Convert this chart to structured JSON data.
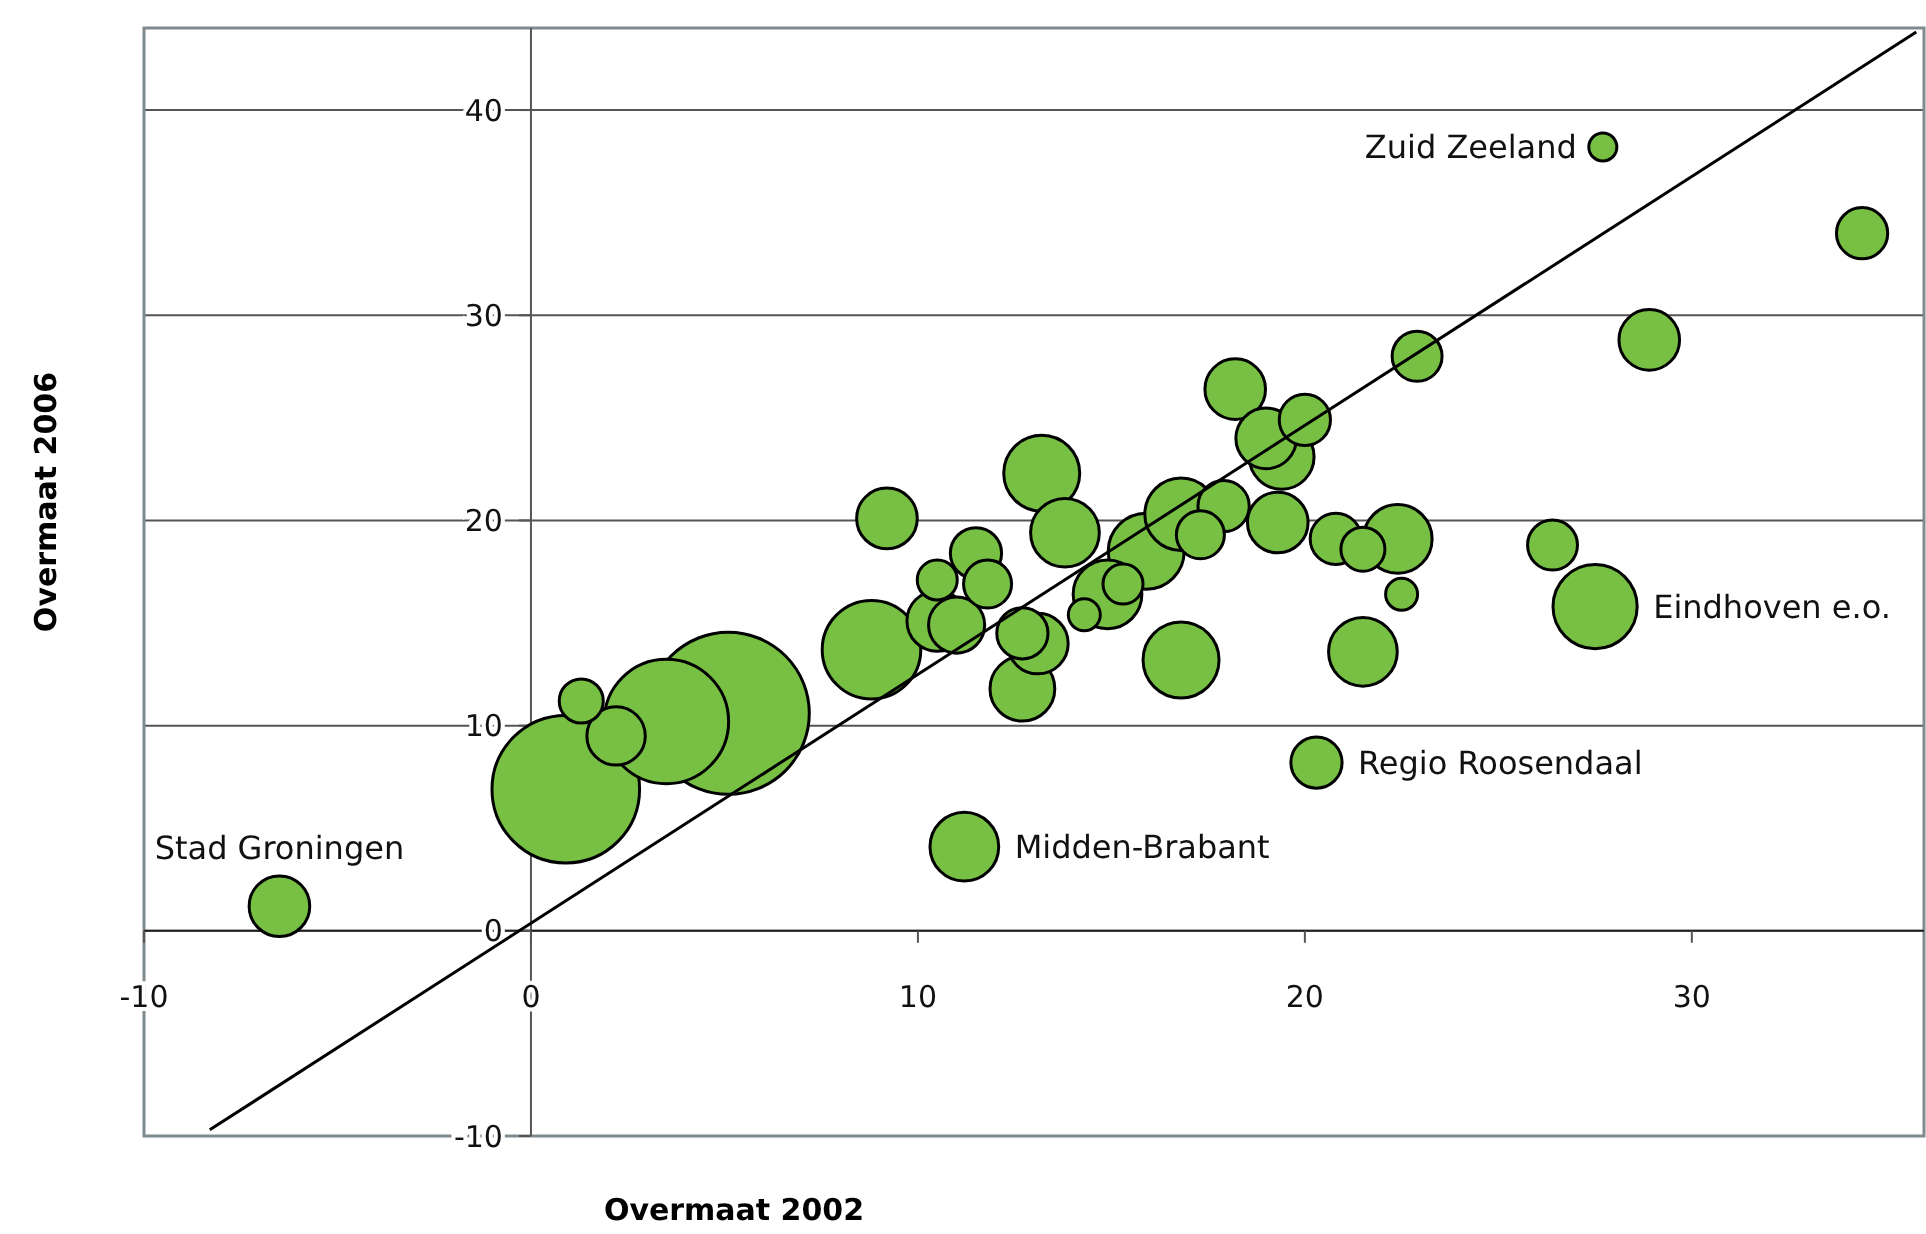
{
  "chart_data": {
    "type": "bubble",
    "xlabel": "Overmaat 2002",
    "ylabel": "Overmaat 2006",
    "xlim": [
      -10,
      36
    ],
    "ylim": [
      -10,
      44
    ],
    "xticks": [
      -10,
      0,
      10,
      20,
      30
    ],
    "yticks": [
      -10,
      0,
      10,
      20,
      30,
      40
    ],
    "grid": "y",
    "series": [
      {
        "color": "#77c043",
        "x": [
          -6.5,
          0.9,
          3.5,
          5.1,
          1.3,
          2.2,
          8.8,
          11.2,
          20.3,
          27.5,
          27.7,
          34.4,
          28.9,
          22.9,
          18.2,
          20.0,
          19.0,
          19.4,
          13.2,
          13.8,
          16.8,
          17.9,
          19.3,
          20.8,
          21.5,
          22.4,
          26.4,
          15.9,
          17.3,
          14.9,
          15.3,
          14.3,
          22.5,
          21.5,
          16.8,
          12.7,
          12.7,
          13.1,
          10.5,
          11.8,
          10.5,
          11.0,
          9.2,
          11.5
        ],
        "values": [
          1.2,
          6.9,
          10.2,
          10.6,
          11.2,
          9.5,
          13.7,
          4.1,
          8.2,
          15.8,
          38.2,
          34.0,
          28.8,
          28.0,
          26.4,
          24.9,
          24.0,
          23.1,
          22.3,
          19.4,
          20.3,
          20.7,
          19.9,
          19.1,
          18.6,
          19.1,
          18.8,
          18.5,
          19.3,
          16.4,
          16.9,
          15.4,
          16.4,
          13.6,
          13.2,
          11.8,
          14.5,
          14.0,
          17.1,
          16.9,
          15.1,
          14.9,
          20.1,
          18.4
        ],
        "sizes": [
          0.14,
          0.83,
          0.59,
          1,
          0.074,
          0.13,
          0.37,
          0.18,
          0.1,
          0.27,
          0.03,
          0.1,
          0.14,
          0.095,
          0.14,
          0.1,
          0.14,
          0.16,
          0.22,
          0.18,
          0.2,
          0.1,
          0.14,
          0.1,
          0.074,
          0.18,
          0.095,
          0.22,
          0.088,
          0.18,
          0.061,
          0.039,
          0.039,
          0.18,
          0.22,
          0.16,
          0.1,
          0.14,
          0.061,
          0.088,
          0.14,
          0.12,
          0.14,
          0.1
        ]
      },
      {
        "type": "line",
        "color": "#000000",
        "x": [
          -8.3,
          35.8
        ],
        "values": [
          -9.7,
          43.8
        ]
      }
    ],
    "annotations": [
      {
        "text": "Stad Groningen",
        "x": -6.5,
        "y": 1.2
      },
      {
        "text": "Midden-Brabant",
        "x": 11.2,
        "y": 4.1
      },
      {
        "text": "Regio Roosendaal",
        "x": 20.3,
        "y": 8.2
      },
      {
        "text": "Eindhoven e.o.",
        "x": 27.5,
        "y": 15.8
      },
      {
        "text": "Zuid Zeeland",
        "x": 27.7,
        "y": 38.2
      }
    ]
  }
}
